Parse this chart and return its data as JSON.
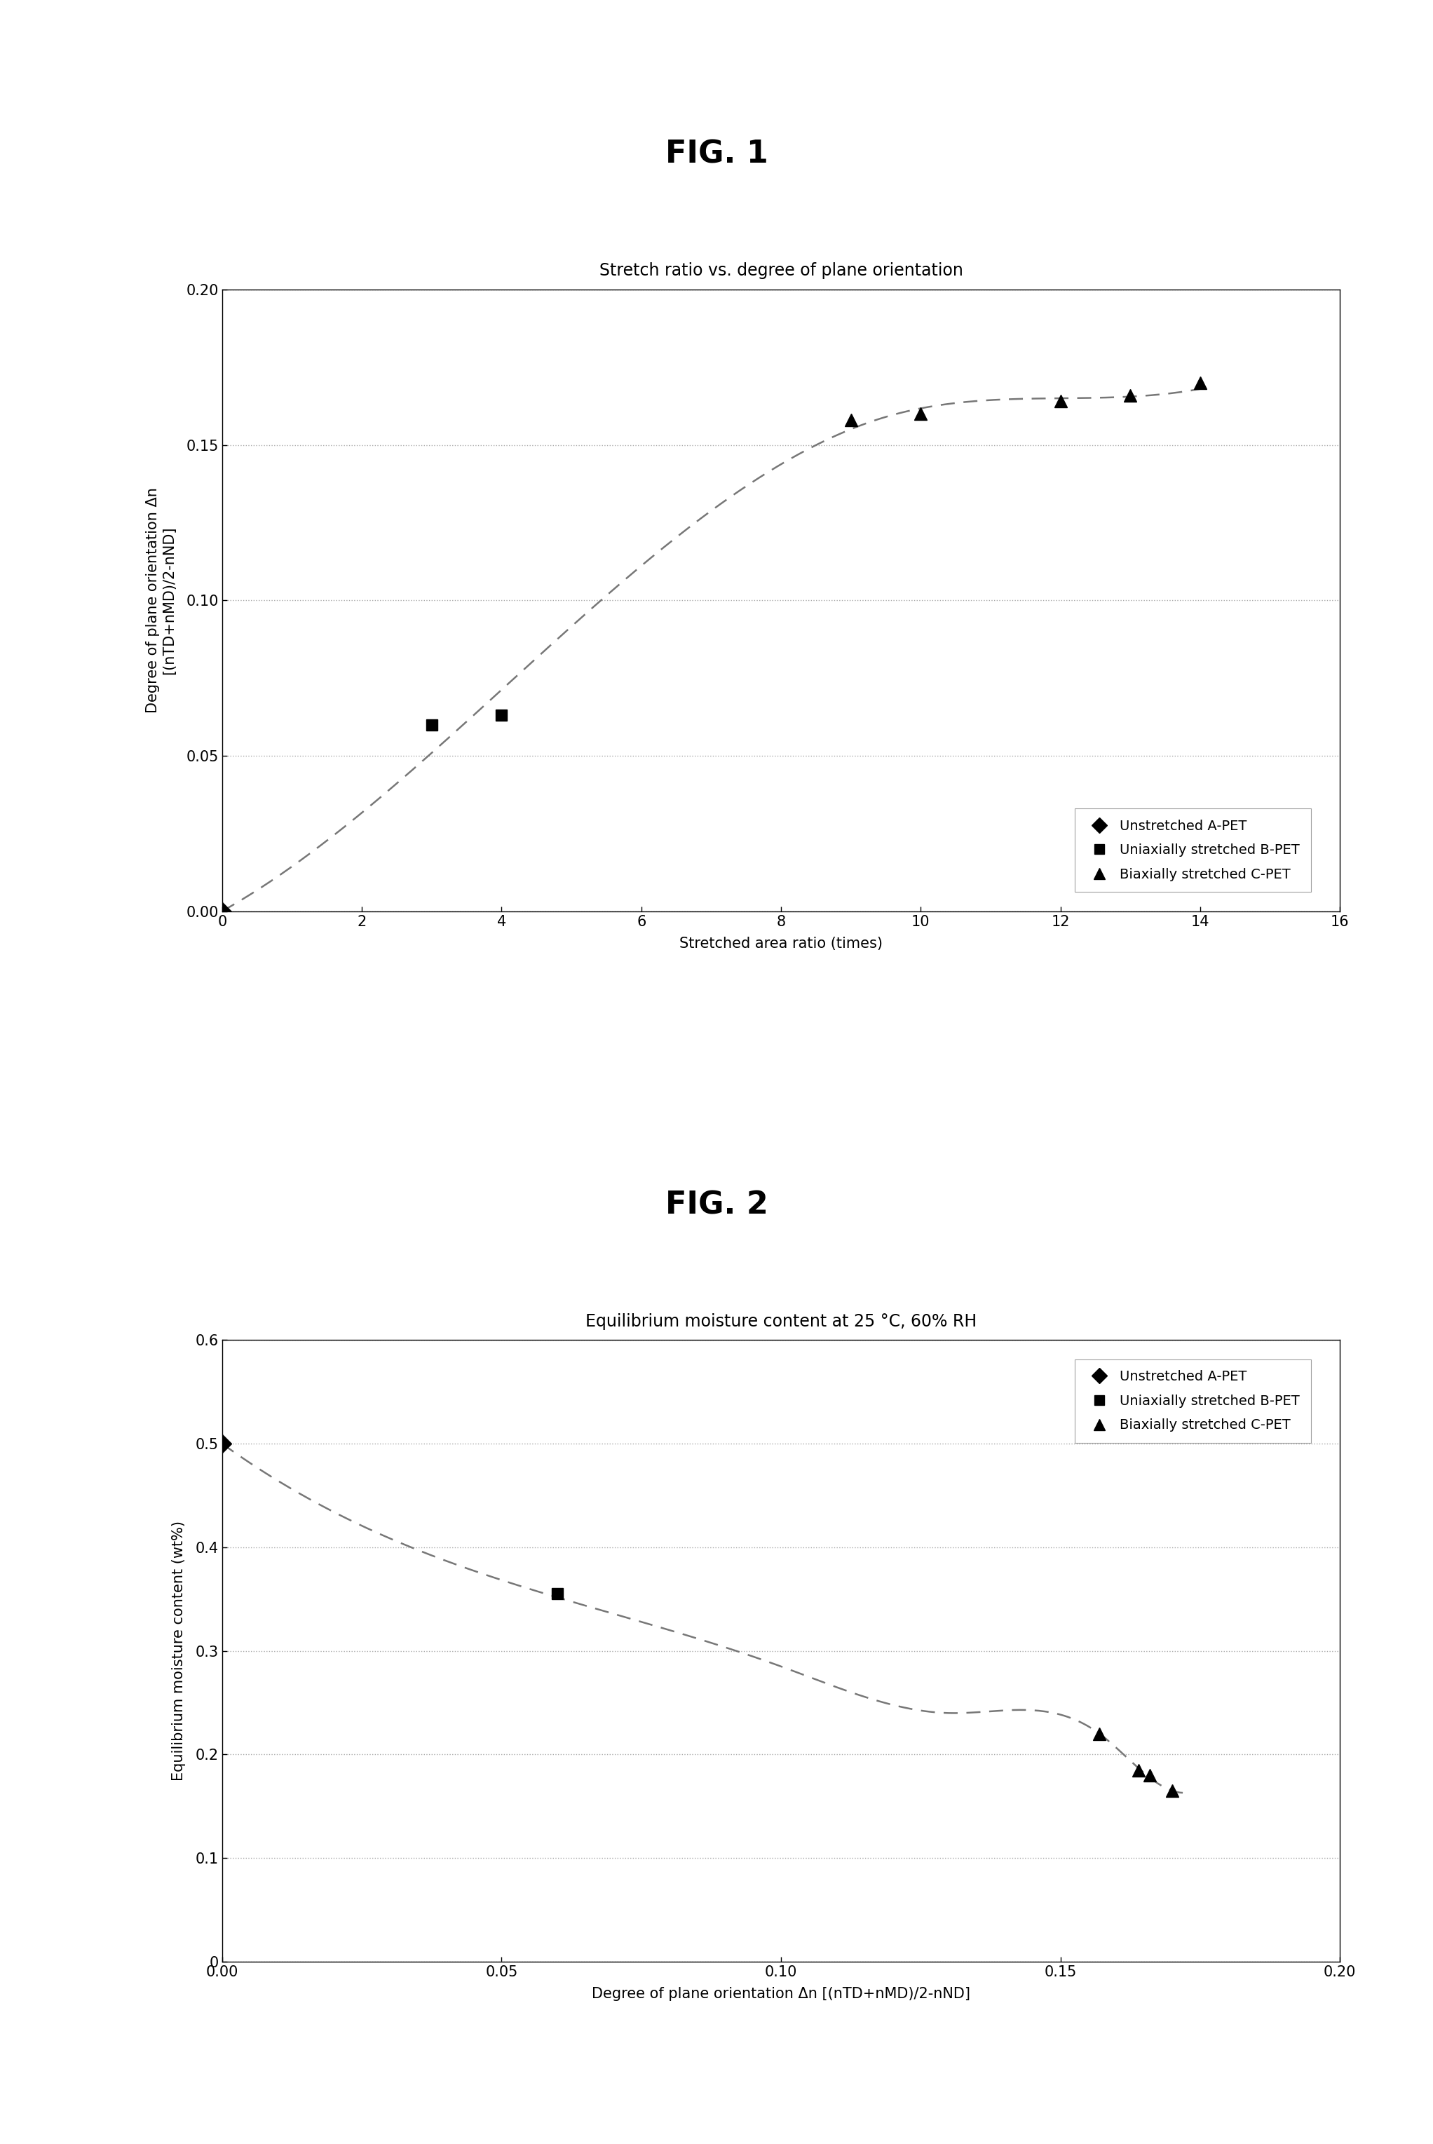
{
  "fig1": {
    "title_fig": "FIG. 1",
    "title_chart": "Stretch ratio vs. degree of plane orientation",
    "xlabel": "Stretched area ratio (times)",
    "ylabel": "Degree of plane orientation Δn\n[(nTD+nMD)/2-nND]",
    "xlim": [
      0,
      16
    ],
    "ylim": [
      0.0,
      0.2
    ],
    "xticks": [
      0,
      2,
      4,
      6,
      8,
      10,
      12,
      14,
      16
    ],
    "yticks": [
      0.0,
      0.05,
      0.1,
      0.15,
      0.2
    ],
    "ytick_labels": [
      "0.00",
      "0.05",
      "0.10",
      "0.15",
      "0.20"
    ],
    "xtick_labels": [
      "0",
      "2",
      "4",
      "6",
      "8",
      "10",
      "12",
      "14",
      "16"
    ],
    "data_A": {
      "x": [
        0
      ],
      "y": [
        0.0
      ],
      "marker": "D",
      "label": "Unstretched A-PET"
    },
    "data_B": {
      "x": [
        3,
        4
      ],
      "y": [
        0.06,
        0.063
      ],
      "marker": "s",
      "label": "Uniaxially stretched B-PET"
    },
    "data_C": {
      "x": [
        9,
        10,
        12,
        13,
        14
      ],
      "y": [
        0.158,
        0.16,
        0.164,
        0.166,
        0.17
      ],
      "marker": "^",
      "label": "Biaxially stretched C-PET"
    },
    "trend_x": [
      0,
      3.5,
      9.5,
      12,
      14
    ],
    "trend_y": [
      0.0,
      0.061,
      0.159,
      0.165,
      0.168
    ],
    "marker_size": 10,
    "marker_color": "#000000",
    "line_color": "#777777"
  },
  "fig2": {
    "title_fig": "FIG. 2",
    "title_chart": "Equilibrium moisture content at 25 °C, 60% RH",
    "xlabel": "Degree of plane orientation Δn [(nTD+nMD)/2-nND]",
    "ylabel": "Equilibrium moisture content (wt%)",
    "xlim": [
      0.0,
      0.2
    ],
    "ylim": [
      0.0,
      0.6
    ],
    "xticks": [
      0.0,
      0.05,
      0.1,
      0.15,
      0.2
    ],
    "yticks": [
      0,
      0.1,
      0.2,
      0.3,
      0.4,
      0.5,
      0.6
    ],
    "ytick_labels": [
      "0",
      "0.1",
      "0.2",
      "0.3",
      "0.4",
      "0.5",
      "0.6"
    ],
    "xtick_labels": [
      "0.00",
      "0.05",
      "0.10",
      "0.15",
      "0.20"
    ],
    "data_A": {
      "x": [
        0.0
      ],
      "y": [
        0.5
      ],
      "marker": "D",
      "label": "Unstretched A-PET"
    },
    "data_B": {
      "x": [
        0.06
      ],
      "y": [
        0.355
      ],
      "marker": "s",
      "label": "Uniaxially stretched B-PET"
    },
    "data_C": {
      "x": [
        0.157,
        0.164,
        0.166,
        0.17
      ],
      "y": [
        0.22,
        0.185,
        0.18,
        0.165
      ],
      "marker": "^",
      "label": "Biaxially stretched C-PET"
    },
    "trend_x": [
      0.0,
      0.061,
      0.1,
      0.13,
      0.157,
      0.165,
      0.172
    ],
    "trend_y": [
      0.5,
      0.35,
      0.285,
      0.24,
      0.22,
      0.182,
      0.163
    ],
    "marker_size": 10,
    "marker_color": "#000000",
    "line_color": "#777777"
  },
  "background_color": "#ffffff",
  "fig_title_fontsize": 32,
  "chart_title_fontsize": 17,
  "axis_label_fontsize": 15,
  "tick_fontsize": 15,
  "legend_fontsize": 14
}
